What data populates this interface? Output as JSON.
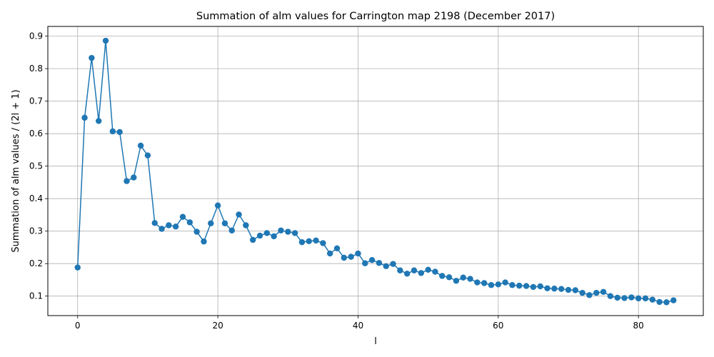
{
  "chart_data": {
    "type": "line",
    "title": "Summation of alm values for Carrington map 2198 (December 2017)",
    "xlabel": "l",
    "ylabel": "Summation of alm values / (2l + 1)",
    "xlim": [
      -4.25,
      89.25
    ],
    "ylim": [
      0.04,
      0.93
    ],
    "x_ticks": [
      0,
      20,
      40,
      60,
      80
    ],
    "y_ticks": [
      0.1,
      0.2,
      0.3,
      0.4,
      0.5,
      0.6,
      0.7,
      0.8,
      0.9
    ],
    "grid": true,
    "series": [
      {
        "color": "#1f77b4",
        "marker": "circle",
        "x": [
          0,
          1,
          2,
          3,
          4,
          5,
          6,
          7,
          8,
          9,
          10,
          11,
          12,
          13,
          14,
          15,
          16,
          17,
          18,
          19,
          20,
          21,
          22,
          23,
          24,
          25,
          26,
          27,
          28,
          29,
          30,
          31,
          32,
          33,
          34,
          35,
          36,
          37,
          38,
          39,
          40,
          41,
          42,
          43,
          44,
          45,
          46,
          47,
          48,
          49,
          50,
          51,
          52,
          53,
          54,
          55,
          56,
          57,
          58,
          59,
          60,
          61,
          62,
          63,
          64,
          65,
          66,
          67,
          68,
          69,
          70,
          71,
          72,
          73,
          74,
          75,
          76,
          77,
          78,
          79,
          80,
          81,
          82,
          83,
          84,
          85
        ],
        "y": [
          0.188,
          0.649,
          0.833,
          0.639,
          0.886,
          0.607,
          0.605,
          0.454,
          0.465,
          0.563,
          0.533,
          0.325,
          0.307,
          0.318,
          0.314,
          0.344,
          0.327,
          0.298,
          0.268,
          0.324,
          0.379,
          0.324,
          0.302,
          0.351,
          0.318,
          0.273,
          0.286,
          0.294,
          0.284,
          0.302,
          0.298,
          0.294,
          0.266,
          0.269,
          0.271,
          0.263,
          0.231,
          0.247,
          0.218,
          0.221,
          0.231,
          0.201,
          0.211,
          0.202,
          0.192,
          0.199,
          0.179,
          0.169,
          0.179,
          0.171,
          0.181,
          0.175,
          0.162,
          0.158,
          0.147,
          0.157,
          0.153,
          0.142,
          0.14,
          0.134,
          0.136,
          0.142,
          0.134,
          0.132,
          0.131,
          0.128,
          0.13,
          0.124,
          0.123,
          0.122,
          0.119,
          0.118,
          0.11,
          0.103,
          0.11,
          0.113,
          0.1,
          0.095,
          0.094,
          0.096,
          0.093,
          0.093,
          0.089,
          0.082,
          0.081,
          0.087
        ]
      }
    ]
  }
}
